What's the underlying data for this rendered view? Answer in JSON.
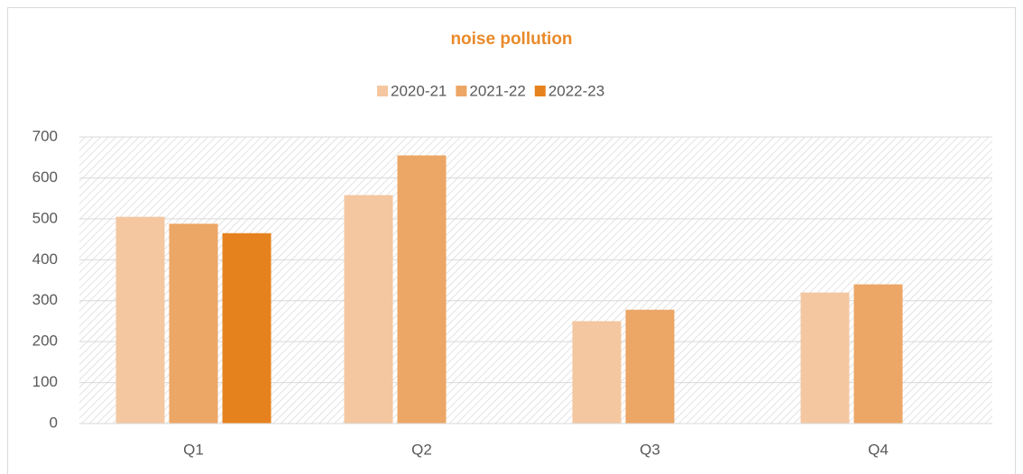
{
  "chart_data": {
    "type": "bar",
    "title": "noise pollution",
    "categories": [
      "Q1",
      "Q2",
      "Q3",
      "Q4"
    ],
    "series": [
      {
        "name": "2020-21",
        "color": "#f4c7a0",
        "values": [
          505,
          558,
          250,
          320
        ]
      },
      {
        "name": "2021-22",
        "color": "#eca665",
        "values": [
          488,
          655,
          278,
          340
        ]
      },
      {
        "name": "2022-23",
        "color": "#e6821e",
        "values": [
          465,
          null,
          null,
          null
        ]
      }
    ],
    "ylim": [
      0,
      700
    ],
    "yticks": [
      0,
      100,
      200,
      300,
      400,
      500,
      600,
      700
    ],
    "grid": true,
    "legend": "top"
  }
}
